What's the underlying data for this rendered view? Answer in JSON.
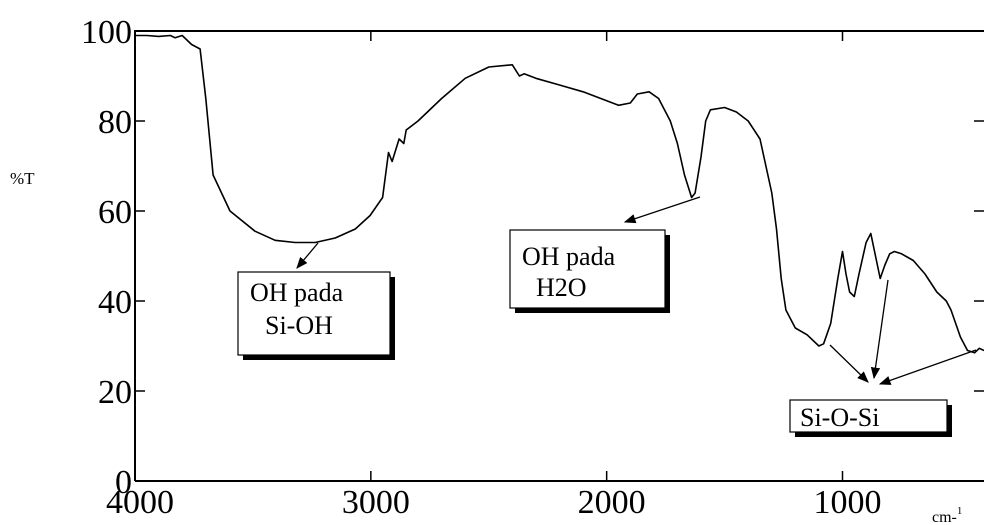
{
  "chart_data": {
    "type": "line",
    "ylabel": "%T",
    "xlabel": "cm-",
    "xlabel_sup": "1",
    "xlim": [
      4000,
      400
    ],
    "ylim": [
      0,
      100
    ],
    "xticks": [
      4000,
      3000,
      2000,
      1000
    ],
    "yticks": [
      0,
      20,
      40,
      60,
      80,
      100
    ],
    "series": [
      {
        "color": "#000000",
        "x": [
          4000,
          3950,
          3900,
          3850,
          3830,
          3800,
          3760,
          3724,
          3700,
          3669,
          3597,
          3491,
          3406,
          3321,
          3236,
          3151,
          3066,
          3003,
          2950,
          2925,
          2910,
          2880,
          2860,
          2850,
          2800,
          2700,
          2600,
          2500,
          2400,
          2370,
          2350,
          2300,
          2200,
          2100,
          2000,
          1950,
          1900,
          1870,
          1820,
          1780,
          1730,
          1700,
          1670,
          1640,
          1625,
          1600,
          1580,
          1560,
          1500,
          1450,
          1400,
          1350,
          1300,
          1280,
          1260,
          1240,
          1200,
          1150,
          1100,
          1080,
          1050,
          1020,
          1000,
          985,
          970,
          950,
          930,
          900,
          880,
          860,
          840,
          820,
          800,
          780,
          750,
          700,
          650,
          600,
          560,
          540,
          500,
          470,
          440,
          420,
          400
        ],
        "values": [
          99,
          99,
          98.8,
          99,
          98.5,
          99,
          97,
          96,
          85,
          68,
          60,
          55.5,
          53.5,
          53,
          53,
          54,
          56,
          59,
          63,
          73,
          71,
          76,
          75,
          78,
          80,
          85,
          89.5,
          92,
          92.5,
          90,
          90.5,
          89.5,
          88,
          86.5,
          84.5,
          83.5,
          84,
          86,
          86.5,
          85,
          80,
          75,
          68,
          63,
          64,
          72,
          80,
          82.5,
          83,
          82,
          80,
          76,
          64,
          56,
          45,
          38,
          34,
          32.5,
          30,
          30.5,
          35,
          45,
          51,
          46,
          42,
          41,
          46,
          53,
          55,
          50,
          45,
          48,
          50.5,
          51,
          50.5,
          49,
          46,
          42,
          40,
          38,
          32,
          29,
          28.5,
          29.5,
          29
        ]
      }
    ],
    "annotations": [
      {
        "lines": [
          "OH pada",
          "Si-OH"
        ]
      },
      {
        "lines": [
          "OH pada",
          "H2O"
        ]
      },
      {
        "lines": [
          "Si-O-Si"
        ]
      }
    ]
  }
}
